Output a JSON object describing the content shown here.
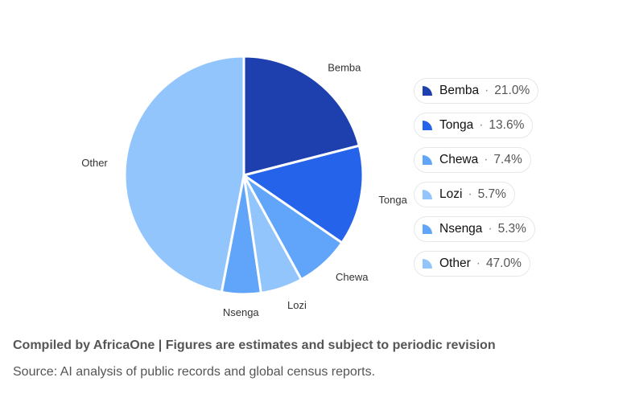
{
  "chart_data": {
    "type": "pie",
    "categories": [
      "Bemba",
      "Tonga",
      "Chewa",
      "Lozi",
      "Nsenga",
      "Other"
    ],
    "values": [
      21.0,
      13.6,
      7.4,
      5.7,
      5.3,
      47.0
    ],
    "colors": [
      "#1e40af",
      "#2563eb",
      "#60a5fa",
      "#93c5fd",
      "#60a5fa",
      "#93c5fd"
    ],
    "legend_placement": "right",
    "legend": [
      {
        "name": "Bemba",
        "pct": "21.0%"
      },
      {
        "name": "Tonga",
        "pct": "13.6%"
      },
      {
        "name": "Chewa",
        "pct": "7.4%"
      },
      {
        "name": "Lozi",
        "pct": "5.7%"
      },
      {
        "name": "Nsenga",
        "pct": "5.3%"
      },
      {
        "name": "Other",
        "pct": "47.0%"
      }
    ],
    "separator": "·"
  },
  "footer": {
    "credit": "Compiled by AfricaOne | Figures are estimates and subject to periodic revision",
    "source": "Source: AI analysis of public records and global census reports."
  }
}
